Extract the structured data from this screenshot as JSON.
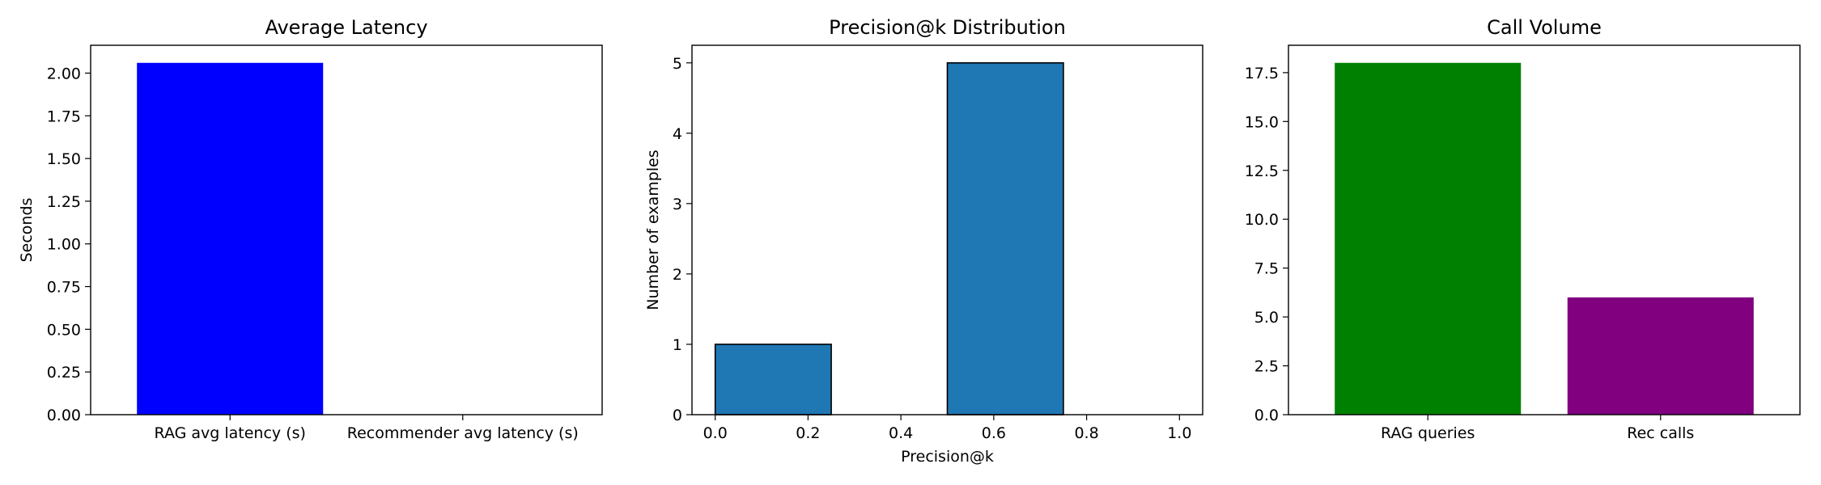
{
  "chart_data": [
    {
      "type": "bar",
      "title": "Average Latency",
      "xlabel": "",
      "ylabel": "Seconds",
      "categories": [
        "RAG avg latency (s)",
        "Recommender avg latency (s)"
      ],
      "values": [
        2.06,
        0
      ],
      "colors": [
        "#0000ff",
        "#0000ff"
      ],
      "ylim": [
        0,
        2.163
      ],
      "yticks": [
        "0.00",
        "0.25",
        "0.50",
        "0.75",
        "1.00",
        "1.25",
        "1.50",
        "1.75",
        "2.00"
      ],
      "grid": false
    },
    {
      "type": "histogram",
      "title": "Precision@k Distribution",
      "xlabel": "Precision@k",
      "ylabel": "Number of examples",
      "bins": [
        {
          "from": 0.0,
          "to": 0.25,
          "count": 1
        },
        {
          "from": 0.25,
          "to": 0.5,
          "count": 0
        },
        {
          "from": 0.5,
          "to": 0.75,
          "count": 5
        },
        {
          "from": 0.75,
          "to": 1.0,
          "count": 0
        }
      ],
      "color": "#1f77b4",
      "edgecolor": "#000000",
      "xlim": [
        -0.05,
        1.05
      ],
      "ylim": [
        0,
        5.25
      ],
      "xticks": [
        "0.0",
        "0.2",
        "0.4",
        "0.6",
        "0.8",
        "1.0"
      ],
      "yticks": [
        "0",
        "1",
        "2",
        "3",
        "4",
        "5"
      ],
      "grid": false
    },
    {
      "type": "bar",
      "title": "Call Volume",
      "xlabel": "",
      "ylabel": "",
      "categories": [
        "RAG queries",
        "Rec calls"
      ],
      "values": [
        18,
        6
      ],
      "colors": [
        "#008000",
        "#800080"
      ],
      "ylim": [
        0,
        18.9
      ],
      "yticks": [
        "0.0",
        "2.5",
        "5.0",
        "7.5",
        "10.0",
        "12.5",
        "15.0",
        "17.5"
      ],
      "grid": false
    }
  ]
}
